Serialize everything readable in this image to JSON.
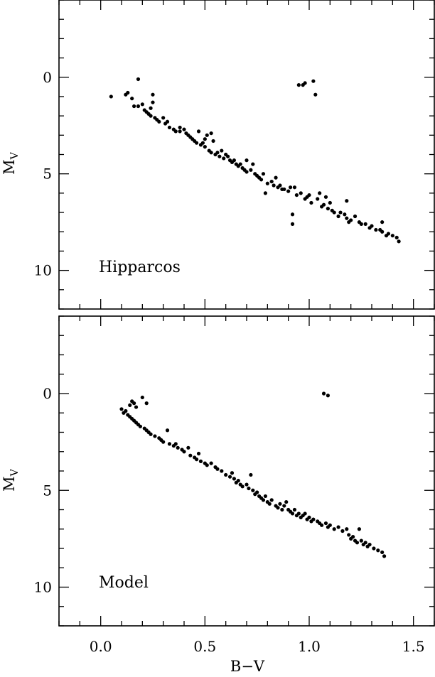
{
  "chart_data": [
    {
      "type": "scatter",
      "label": "Hipparcos",
      "xlabel": "",
      "ylabel": "M",
      "ylabel_sub": "V",
      "xlim": [
        -0.2,
        1.6
      ],
      "ylim": [
        12,
        -4
      ],
      "y_inverted": true,
      "xticks": [
        {
          "value": 0.0,
          "label": ""
        },
        {
          "value": 0.5,
          "label": ""
        },
        {
          "value": 1.0,
          "label": ""
        },
        {
          "value": 1.5,
          "label": ""
        }
      ],
      "yticks": [
        {
          "value": 0,
          "label": "0"
        },
        {
          "value": 5,
          "label": "5"
        },
        {
          "value": 10,
          "label": "10"
        }
      ],
      "points": [
        [
          0.05,
          1.0
        ],
        [
          0.12,
          0.9
        ],
        [
          0.13,
          0.8
        ],
        [
          0.15,
          1.1
        ],
        [
          0.16,
          1.5
        ],
        [
          0.18,
          1.5
        ],
        [
          0.18,
          0.1
        ],
        [
          0.2,
          1.4
        ],
        [
          0.21,
          1.7
        ],
        [
          0.22,
          1.8
        ],
        [
          0.23,
          1.9
        ],
        [
          0.24,
          1.6
        ],
        [
          0.25,
          1.3
        ],
        [
          0.25,
          0.9
        ],
        [
          0.24,
          2.0
        ],
        [
          0.26,
          2.1
        ],
        [
          0.27,
          2.2
        ],
        [
          0.28,
          2.3
        ],
        [
          0.3,
          2.1
        ],
        [
          0.31,
          2.4
        ],
        [
          0.32,
          2.3
        ],
        [
          0.33,
          2.6
        ],
        [
          0.35,
          2.7
        ],
        [
          0.36,
          2.8
        ],
        [
          0.38,
          2.8
        ],
        [
          0.38,
          2.6
        ],
        [
          0.4,
          2.7
        ],
        [
          0.41,
          2.9
        ],
        [
          0.42,
          3.0
        ],
        [
          0.43,
          3.1
        ],
        [
          0.44,
          3.2
        ],
        [
          0.45,
          3.3
        ],
        [
          0.46,
          3.4
        ],
        [
          0.47,
          2.8
        ],
        [
          0.48,
          3.5
        ],
        [
          0.49,
          3.4
        ],
        [
          0.5,
          3.6
        ],
        [
          0.5,
          3.2
        ],
        [
          0.51,
          3.0
        ],
        [
          0.52,
          3.8
        ],
        [
          0.53,
          3.9
        ],
        [
          0.53,
          2.9
        ],
        [
          0.54,
          3.3
        ],
        [
          0.55,
          4.0
        ],
        [
          0.56,
          3.9
        ],
        [
          0.57,
          4.1
        ],
        [
          0.58,
          3.8
        ],
        [
          0.59,
          4.2
        ],
        [
          0.6,
          4.0
        ],
        [
          0.61,
          4.1
        ],
        [
          0.62,
          4.3
        ],
        [
          0.63,
          4.4
        ],
        [
          0.64,
          4.3
        ],
        [
          0.65,
          4.5
        ],
        [
          0.66,
          4.6
        ],
        [
          0.67,
          4.5
        ],
        [
          0.68,
          4.7
        ],
        [
          0.69,
          4.8
        ],
        [
          0.7,
          4.9
        ],
        [
          0.7,
          4.3
        ],
        [
          0.72,
          4.8
        ],
        [
          0.73,
          4.5
        ],
        [
          0.74,
          5.0
        ],
        [
          0.75,
          5.1
        ],
        [
          0.76,
          5.2
        ],
        [
          0.77,
          5.3
        ],
        [
          0.78,
          5.0
        ],
        [
          0.79,
          6.0
        ],
        [
          0.8,
          5.5
        ],
        [
          0.82,
          5.4
        ],
        [
          0.83,
          5.6
        ],
        [
          0.84,
          5.2
        ],
        [
          0.85,
          5.7
        ],
        [
          0.86,
          5.6
        ],
        [
          0.87,
          5.8
        ],
        [
          0.88,
          5.8
        ],
        [
          0.9,
          5.9
        ],
        [
          0.91,
          5.7
        ],
        [
          0.92,
          7.1
        ],
        [
          0.92,
          7.6
        ],
        [
          0.93,
          5.7
        ],
        [
          0.94,
          6.1
        ],
        [
          0.95,
          0.4
        ],
        [
          0.96,
          6.0
        ],
        [
          0.97,
          0.4
        ],
        [
          0.98,
          0.3
        ],
        [
          0.98,
          6.3
        ],
        [
          0.99,
          6.2
        ],
        [
          1.0,
          6.1
        ],
        [
          1.01,
          6.5
        ],
        [
          1.02,
          0.2
        ],
        [
          1.03,
          0.9
        ],
        [
          1.04,
          6.3
        ],
        [
          1.05,
          6.0
        ],
        [
          1.06,
          6.7
        ],
        [
          1.07,
          6.6
        ],
        [
          1.08,
          6.2
        ],
        [
          1.09,
          6.8
        ],
        [
          1.1,
          6.5
        ],
        [
          1.11,
          6.9
        ],
        [
          1.12,
          7.0
        ],
        [
          1.14,
          7.2
        ],
        [
          1.15,
          7.0
        ],
        [
          1.17,
          7.1
        ],
        [
          1.18,
          7.3
        ],
        [
          1.18,
          6.4
        ],
        [
          1.19,
          7.5
        ],
        [
          1.2,
          7.4
        ],
        [
          1.22,
          7.2
        ],
        [
          1.24,
          7.5
        ],
        [
          1.25,
          7.6
        ],
        [
          1.27,
          7.6
        ],
        [
          1.29,
          7.8
        ],
        [
          1.3,
          7.7
        ],
        [
          1.32,
          7.9
        ],
        [
          1.34,
          7.9
        ],
        [
          1.35,
          8.0
        ],
        [
          1.35,
          7.5
        ],
        [
          1.37,
          8.2
        ],
        [
          1.38,
          8.1
        ],
        [
          1.4,
          8.2
        ],
        [
          1.42,
          8.3
        ],
        [
          1.43,
          8.5
        ]
      ]
    },
    {
      "type": "scatter",
      "label": "Model",
      "xlabel": "B−V",
      "ylabel": "M",
      "ylabel_sub": "V",
      "xlim": [
        -0.2,
        1.6
      ],
      "ylim": [
        12,
        -4
      ],
      "y_inverted": true,
      "xticks": [
        {
          "value": 0.0,
          "label": "0.0"
        },
        {
          "value": 0.5,
          "label": "0.5"
        },
        {
          "value": 1.0,
          "label": "1.0"
        },
        {
          "value": 1.5,
          "label": "1.5"
        }
      ],
      "yticks": [
        {
          "value": 0,
          "label": "0"
        },
        {
          "value": 5,
          "label": "5"
        },
        {
          "value": 10,
          "label": "10"
        }
      ],
      "points": [
        [
          0.1,
          0.8
        ],
        [
          0.11,
          1.0
        ],
        [
          0.12,
          0.9
        ],
        [
          0.13,
          1.1
        ],
        [
          0.14,
          0.6
        ],
        [
          0.14,
          1.2
        ],
        [
          0.15,
          0.4
        ],
        [
          0.15,
          1.3
        ],
        [
          0.16,
          0.5
        ],
        [
          0.16,
          1.4
        ],
        [
          0.17,
          0.7
        ],
        [
          0.17,
          1.5
        ],
        [
          0.18,
          1.6
        ],
        [
          0.19,
          1.7
        ],
        [
          0.2,
          0.2
        ],
        [
          0.21,
          1.8
        ],
        [
          0.22,
          0.5
        ],
        [
          0.22,
          1.9
        ],
        [
          0.23,
          2.0
        ],
        [
          0.24,
          2.1
        ],
        [
          0.26,
          2.2
        ],
        [
          0.28,
          2.3
        ],
        [
          0.29,
          2.4
        ],
        [
          0.3,
          2.5
        ],
        [
          0.32,
          1.9
        ],
        [
          0.33,
          2.6
        ],
        [
          0.35,
          2.7
        ],
        [
          0.36,
          2.6
        ],
        [
          0.37,
          2.8
        ],
        [
          0.39,
          2.9
        ],
        [
          0.4,
          3.0
        ],
        [
          0.42,
          2.8
        ],
        [
          0.43,
          3.2
        ],
        [
          0.45,
          3.3
        ],
        [
          0.46,
          3.4
        ],
        [
          0.47,
          3.1
        ],
        [
          0.48,
          3.5
        ],
        [
          0.5,
          3.6
        ],
        [
          0.51,
          3.7
        ],
        [
          0.53,
          3.6
        ],
        [
          0.55,
          3.8
        ],
        [
          0.56,
          3.9
        ],
        [
          0.58,
          4.0
        ],
        [
          0.6,
          4.2
        ],
        [
          0.62,
          4.3
        ],
        [
          0.63,
          4.1
        ],
        [
          0.64,
          4.4
        ],
        [
          0.65,
          4.6
        ],
        [
          0.66,
          4.5
        ],
        [
          0.67,
          4.7
        ],
        [
          0.68,
          4.8
        ],
        [
          0.7,
          4.7
        ],
        [
          0.71,
          4.9
        ],
        [
          0.72,
          4.2
        ],
        [
          0.73,
          5.0
        ],
        [
          0.74,
          5.2
        ],
        [
          0.75,
          5.1
        ],
        [
          0.76,
          5.3
        ],
        [
          0.77,
          5.4
        ],
        [
          0.78,
          5.5
        ],
        [
          0.79,
          5.3
        ],
        [
          0.8,
          5.6
        ],
        [
          0.81,
          5.7
        ],
        [
          0.82,
          5.5
        ],
        [
          0.84,
          5.8
        ],
        [
          0.85,
          5.9
        ],
        [
          0.86,
          5.7
        ],
        [
          0.87,
          6.0
        ],
        [
          0.88,
          5.8
        ],
        [
          0.89,
          5.6
        ],
        [
          0.9,
          6.0
        ],
        [
          0.91,
          6.1
        ],
        [
          0.92,
          6.2
        ],
        [
          0.93,
          6.0
        ],
        [
          0.94,
          6.3
        ],
        [
          0.95,
          6.2
        ],
        [
          0.96,
          6.4
        ],
        [
          0.97,
          6.3
        ],
        [
          0.98,
          6.2
        ],
        [
          0.99,
          6.5
        ],
        [
          1.0,
          6.4
        ],
        [
          1.01,
          6.6
        ],
        [
          1.02,
          6.5
        ],
        [
          1.04,
          6.6
        ],
        [
          1.05,
          6.7
        ],
        [
          1.06,
          6.8
        ],
        [
          1.07,
          0.0
        ],
        [
          1.08,
          6.7
        ],
        [
          1.09,
          0.1
        ],
        [
          1.09,
          6.9
        ],
        [
          1.1,
          6.8
        ],
        [
          1.12,
          7.0
        ],
        [
          1.14,
          6.9
        ],
        [
          1.16,
          7.1
        ],
        [
          1.18,
          7.0
        ],
        [
          1.19,
          7.3
        ],
        [
          1.2,
          7.5
        ],
        [
          1.21,
          7.4
        ],
        [
          1.22,
          7.6
        ],
        [
          1.23,
          7.7
        ],
        [
          1.24,
          7.0
        ],
        [
          1.25,
          7.6
        ],
        [
          1.26,
          7.8
        ],
        [
          1.27,
          7.7
        ],
        [
          1.28,
          7.9
        ],
        [
          1.29,
          7.8
        ],
        [
          1.31,
          8.0
        ],
        [
          1.33,
          8.1
        ],
        [
          1.35,
          8.2
        ],
        [
          1.36,
          8.4
        ]
      ]
    }
  ]
}
